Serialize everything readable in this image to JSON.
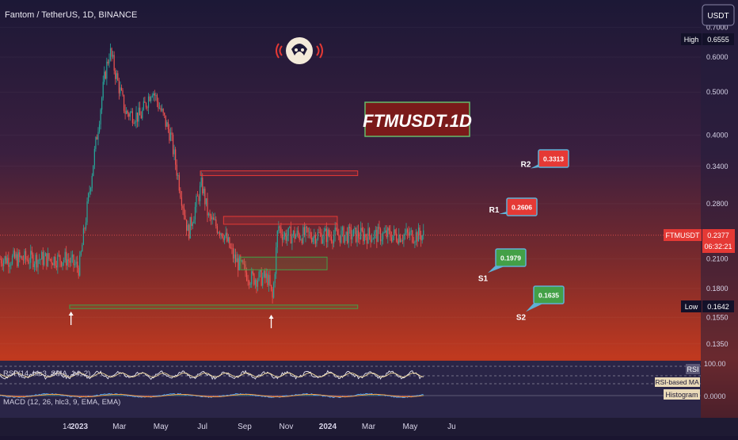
{
  "header": {
    "symbol_title": "Fantom / TetherUS, 1D, BINANCE",
    "currency_button": "USDT"
  },
  "overlay_title": "FTMUSDT.1D",
  "price_axis": {
    "ticks": [
      "0.7000",
      "0.6000",
      "0.5000",
      "0.4000",
      "0.3400",
      "0.2800",
      "0.2100",
      "0.1800",
      "0.1550",
      "0.1350"
    ],
    "tick_values": [
      0.7,
      0.6,
      0.5,
      0.4,
      0.34,
      0.28,
      0.21,
      0.18,
      0.155,
      0.135
    ],
    "high_label": "High",
    "high_value": "0.6555",
    "low_label": "Low",
    "low_value": "0.1642",
    "current_symbol": "FTMUSDT",
    "current_price": "0.2377",
    "countdown": "06:32:21"
  },
  "time_axis": {
    "labels": [
      "14",
      "2023",
      "Mar",
      "May",
      "Jul",
      "Sep",
      "Nov",
      "2024",
      "Mar",
      "May",
      "Ju"
    ]
  },
  "levels": [
    {
      "name": "R2",
      "value": "0.3313",
      "kind": "resistance"
    },
    {
      "name": "R1",
      "value": "0.2606",
      "kind": "resistance"
    },
    {
      "name": "S1",
      "value": "0.1979",
      "kind": "support"
    },
    {
      "name": "S2",
      "value": "0.1635",
      "kind": "support"
    }
  ],
  "rsi": {
    "legend": "RSI (14, hlc3, SMA, 14, 2)",
    "axis_value": "100.00",
    "tag": "RSI",
    "ma_tag": "RSI-based MA"
  },
  "macd": {
    "legend": "MACD (12, 26, hlc3, 9, EMA, EMA)",
    "axis_value": "0.0000",
    "tag": "Histogram"
  },
  "colors": {
    "up": "#26a69a",
    "down": "#ef5350",
    "resistance": "#e53935",
    "support": "#43a047",
    "title_box": "#7a1a1a",
    "title_text": "#ffffff"
  },
  "chart_data": {
    "type": "candlestick",
    "title": "Fantom / TetherUS, 1D, BINANCE",
    "y_scale": "log",
    "ylim": [
      0.125,
      0.72
    ],
    "x": [
      "2022-12-14",
      "2023-01-01",
      "2023-02-08",
      "2023-02-15",
      "2023-03-10",
      "2023-04-01",
      "2023-04-18",
      "2023-05-15",
      "2023-06-10",
      "2023-06-30",
      "2023-07-10",
      "2023-08-01",
      "2023-08-17",
      "2023-09-10",
      "2023-10-05",
      "2023-10-12",
      "2023-10-20",
      "2023-10-28"
    ],
    "close_path": [
      0.21,
      0.2,
      0.55,
      0.62,
      0.45,
      0.44,
      0.51,
      0.4,
      0.24,
      0.31,
      0.26,
      0.24,
      0.21,
      0.19,
      0.19,
      0.17,
      0.25,
      0.2377
    ],
    "resistance_levels": [
      0.3313,
      0.2606
    ],
    "support_levels": [
      0.1979,
      0.1635
    ],
    "high": 0.6555,
    "low": 0.1642,
    "last": 0.2377
  }
}
